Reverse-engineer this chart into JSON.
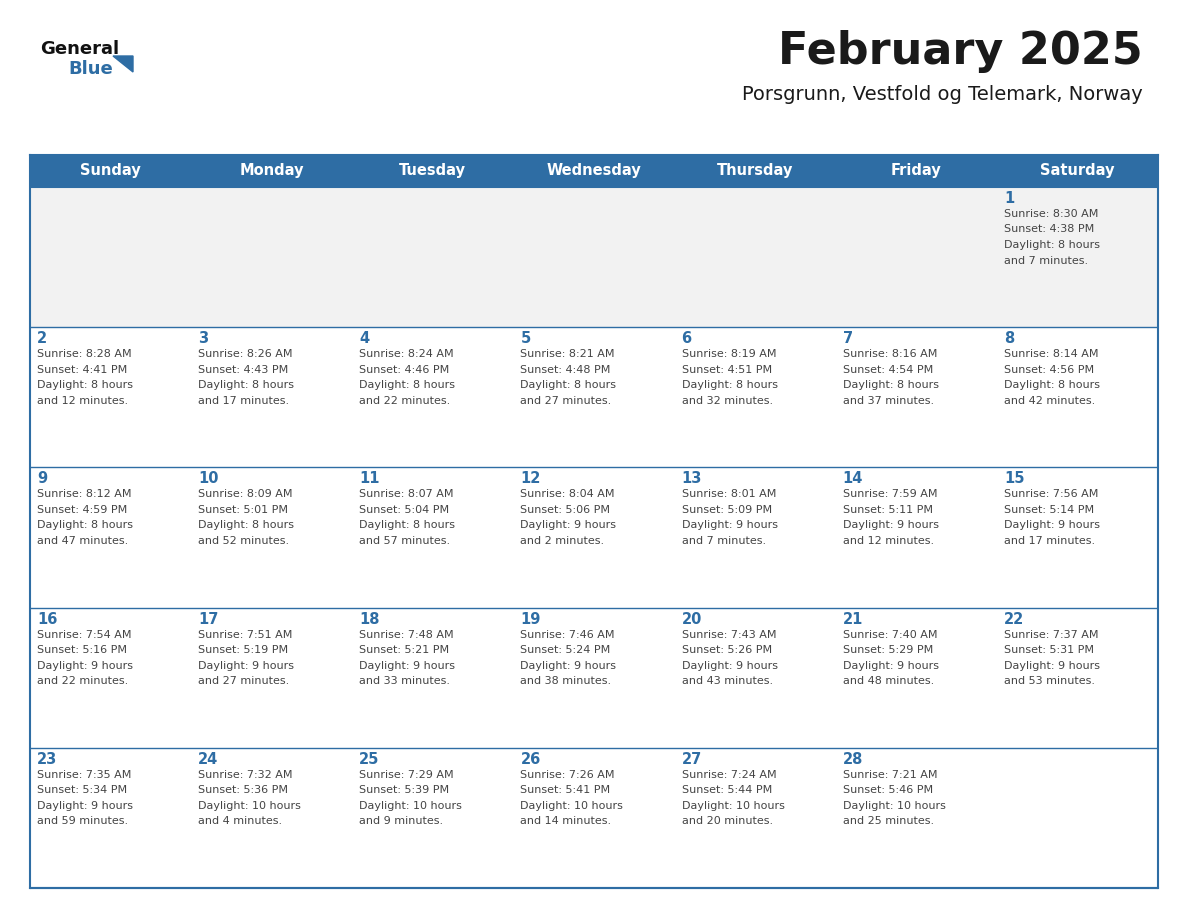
{
  "title": "February 2025",
  "subtitle": "Porsgrunn, Vestfold og Telemark, Norway",
  "header_bg_color": "#2E6DA4",
  "header_text_color": "#FFFFFF",
  "cell_bg_white": "#FFFFFF",
  "cell_bg_gray": "#F2F2F2",
  "border_color": "#2E6DA4",
  "day_headers": [
    "Sunday",
    "Monday",
    "Tuesday",
    "Wednesday",
    "Thursday",
    "Friday",
    "Saturday"
  ],
  "title_color": "#1a1a1a",
  "subtitle_color": "#1a1a1a",
  "day_num_color": "#2E6DA4",
  "info_color": "#444444",
  "logo_general_color": "#111111",
  "logo_blue_color": "#2E6DA4",
  "calendar_data": [
    [
      null,
      null,
      null,
      null,
      null,
      null,
      {
        "day": 1,
        "sunrise": "8:30 AM",
        "sunset": "4:38 PM",
        "daylight": "8 hours and 7 minutes."
      }
    ],
    [
      {
        "day": 2,
        "sunrise": "8:28 AM",
        "sunset": "4:41 PM",
        "daylight": "8 hours and 12 minutes."
      },
      {
        "day": 3,
        "sunrise": "8:26 AM",
        "sunset": "4:43 PM",
        "daylight": "8 hours and 17 minutes."
      },
      {
        "day": 4,
        "sunrise": "8:24 AM",
        "sunset": "4:46 PM",
        "daylight": "8 hours and 22 minutes."
      },
      {
        "day": 5,
        "sunrise": "8:21 AM",
        "sunset": "4:48 PM",
        "daylight": "8 hours and 27 minutes."
      },
      {
        "day": 6,
        "sunrise": "8:19 AM",
        "sunset": "4:51 PM",
        "daylight": "8 hours and 32 minutes."
      },
      {
        "day": 7,
        "sunrise": "8:16 AM",
        "sunset": "4:54 PM",
        "daylight": "8 hours and 37 minutes."
      },
      {
        "day": 8,
        "sunrise": "8:14 AM",
        "sunset": "4:56 PM",
        "daylight": "8 hours and 42 minutes."
      }
    ],
    [
      {
        "day": 9,
        "sunrise": "8:12 AM",
        "sunset": "4:59 PM",
        "daylight": "8 hours and 47 minutes."
      },
      {
        "day": 10,
        "sunrise": "8:09 AM",
        "sunset": "5:01 PM",
        "daylight": "8 hours and 52 minutes."
      },
      {
        "day": 11,
        "sunrise": "8:07 AM",
        "sunset": "5:04 PM",
        "daylight": "8 hours and 57 minutes."
      },
      {
        "day": 12,
        "sunrise": "8:04 AM",
        "sunset": "5:06 PM",
        "daylight": "9 hours and 2 minutes."
      },
      {
        "day": 13,
        "sunrise": "8:01 AM",
        "sunset": "5:09 PM",
        "daylight": "9 hours and 7 minutes."
      },
      {
        "day": 14,
        "sunrise": "7:59 AM",
        "sunset": "5:11 PM",
        "daylight": "9 hours and 12 minutes."
      },
      {
        "day": 15,
        "sunrise": "7:56 AM",
        "sunset": "5:14 PM",
        "daylight": "9 hours and 17 minutes."
      }
    ],
    [
      {
        "day": 16,
        "sunrise": "7:54 AM",
        "sunset": "5:16 PM",
        "daylight": "9 hours and 22 minutes."
      },
      {
        "day": 17,
        "sunrise": "7:51 AM",
        "sunset": "5:19 PM",
        "daylight": "9 hours and 27 minutes."
      },
      {
        "day": 18,
        "sunrise": "7:48 AM",
        "sunset": "5:21 PM",
        "daylight": "9 hours and 33 minutes."
      },
      {
        "day": 19,
        "sunrise": "7:46 AM",
        "sunset": "5:24 PM",
        "daylight": "9 hours and 38 minutes."
      },
      {
        "day": 20,
        "sunrise": "7:43 AM",
        "sunset": "5:26 PM",
        "daylight": "9 hours and 43 minutes."
      },
      {
        "day": 21,
        "sunrise": "7:40 AM",
        "sunset": "5:29 PM",
        "daylight": "9 hours and 48 minutes."
      },
      {
        "day": 22,
        "sunrise": "7:37 AM",
        "sunset": "5:31 PM",
        "daylight": "9 hours and 53 minutes."
      }
    ],
    [
      {
        "day": 23,
        "sunrise": "7:35 AM",
        "sunset": "5:34 PM",
        "daylight": "9 hours and 59 minutes."
      },
      {
        "day": 24,
        "sunrise": "7:32 AM",
        "sunset": "5:36 PM",
        "daylight": "10 hours and 4 minutes."
      },
      {
        "day": 25,
        "sunrise": "7:29 AM",
        "sunset": "5:39 PM",
        "daylight": "10 hours and 9 minutes."
      },
      {
        "day": 26,
        "sunrise": "7:26 AM",
        "sunset": "5:41 PM",
        "daylight": "10 hours and 14 minutes."
      },
      {
        "day": 27,
        "sunrise": "7:24 AM",
        "sunset": "5:44 PM",
        "daylight": "10 hours and 20 minutes."
      },
      {
        "day": 28,
        "sunrise": "7:21 AM",
        "sunset": "5:46 PM",
        "daylight": "10 hours and 25 minutes."
      },
      null
    ]
  ]
}
